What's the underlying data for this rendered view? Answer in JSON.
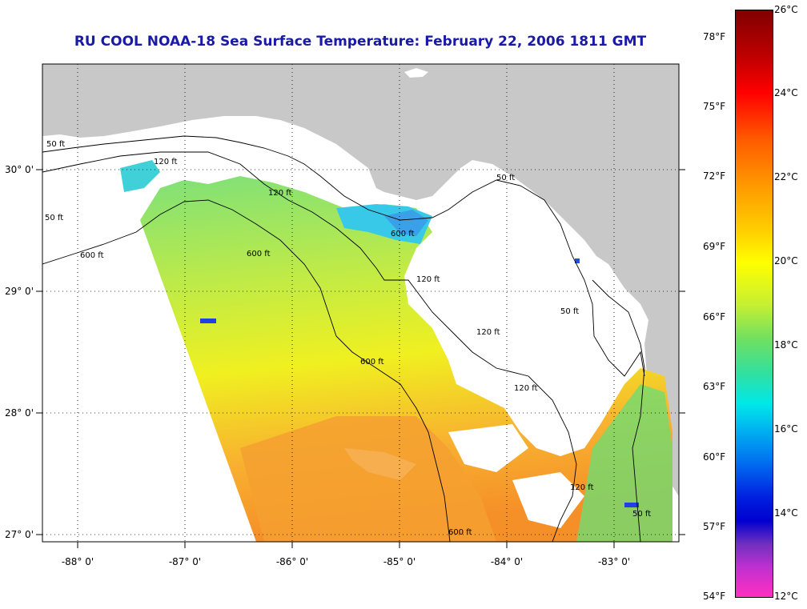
{
  "title": "RU COOL  NOAA-18  Sea Surface Temperature:  February 22, 2006 1811 GMT",
  "x_ticks": [
    "-88° 0'",
    "-87° 0'",
    "-86° 0'",
    "-85° 0'",
    "-84° 0'",
    "-83° 0'"
  ],
  "y_ticks": [
    "30° 0'",
    "29° 0'",
    "28° 0'",
    "27° 0'"
  ],
  "contour_labels": [
    "50 ft",
    "120 ft",
    "600 ft",
    "600 ft",
    "600 ft",
    "120 ft",
    "50 ft",
    "50 ft",
    "120 ft",
    "120 ft",
    "120 ft",
    "50 ft",
    "600 ft",
    "50 ft",
    "120 ft",
    "600 ft"
  ],
  "colorbar": {
    "fahrenheit": [
      "78°F",
      "75°F",
      "72°F",
      "69°F",
      "66°F",
      "63°F",
      "60°F",
      "57°F",
      "54°F"
    ],
    "celsius": [
      "26°C",
      "24°C",
      "22°C",
      "20°C",
      "18°C",
      "16°C",
      "14°C",
      "12°C"
    ]
  },
  "colors": {
    "land": "#c8c8c8",
    "no_data": "#ffffff",
    "title": "#1a1aa8"
  }
}
